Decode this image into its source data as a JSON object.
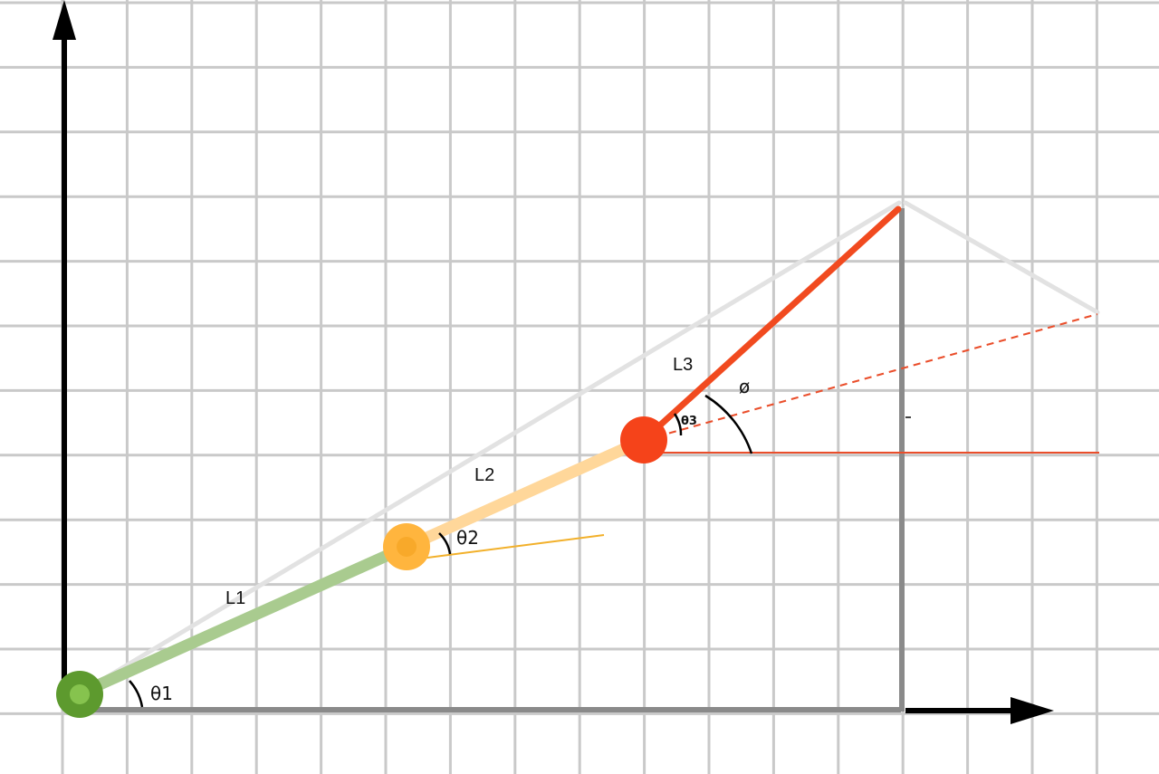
{
  "diagram": {
    "link_labels": {
      "l1": "L1",
      "l2": "L2",
      "l3": "L3"
    },
    "angle_labels": {
      "theta1": "θ1",
      "theta2": "θ2",
      "theta3": "θ3",
      "phi": "ø"
    }
  },
  "colors": {
    "grid": "#c9c9c9",
    "axis": "#000000",
    "frame": "#8a8a8a",
    "ghost": "#e2e2e2",
    "link1": "#a9cb8f",
    "joint1": "#5d9a2e",
    "joint1_inner": "#86c34e",
    "link2": "#ffd79a",
    "joint2": "#ffb53e",
    "link3": "#f14a1f",
    "joint3": "#f5431a",
    "ref_orange": "#f2b02a",
    "ref_red": "#ea4e2b"
  }
}
